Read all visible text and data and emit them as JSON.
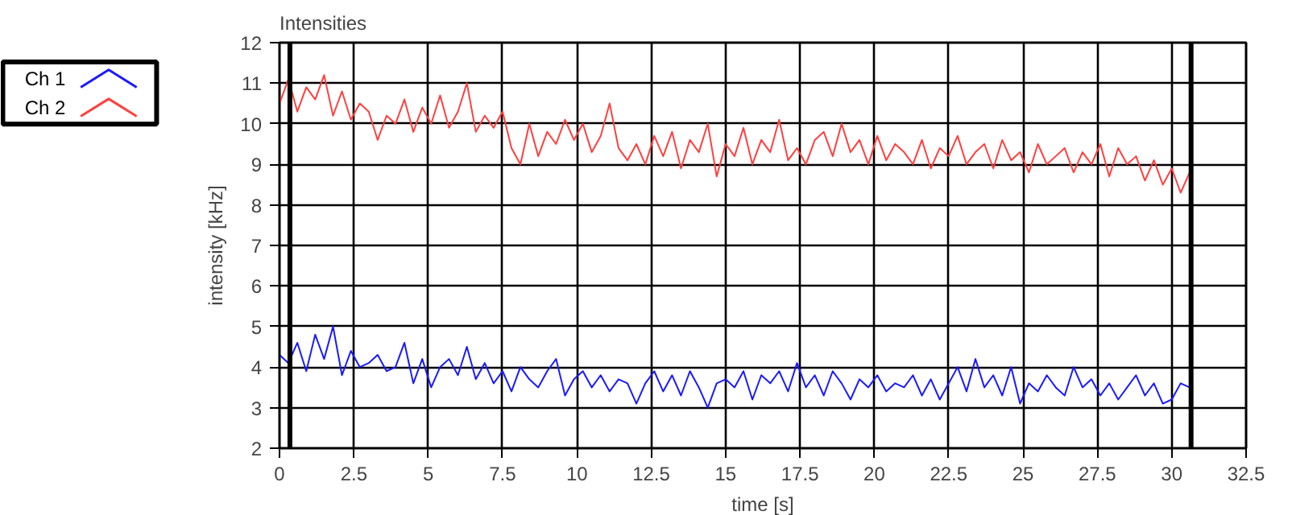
{
  "chart_data": {
    "type": "line",
    "title": "Intensities",
    "xlabel": "time [s]",
    "ylabel": "intensity [kHz]",
    "x": [
      0,
      0.3,
      0.6,
      0.9,
      1.2,
      1.5,
      1.8,
      2.1,
      2.4,
      2.7,
      3.0,
      3.3,
      3.6,
      3.9,
      4.2,
      4.5,
      4.8,
      5.1,
      5.4,
      5.7,
      6.0,
      6.3,
      6.6,
      6.9,
      7.2,
      7.5,
      7.8,
      8.1,
      8.4,
      8.7,
      9.0,
      9.3,
      9.6,
      9.9,
      10.2,
      10.5,
      10.8,
      11.1,
      11.4,
      11.7,
      12.0,
      12.3,
      12.6,
      12.9,
      13.2,
      13.5,
      13.8,
      14.1,
      14.4,
      14.7,
      15.0,
      15.3,
      15.6,
      15.9,
      16.2,
      16.5,
      16.8,
      17.1,
      17.4,
      17.7,
      18.0,
      18.3,
      18.6,
      18.9,
      19.2,
      19.5,
      19.8,
      20.1,
      20.4,
      20.7,
      21.0,
      21.3,
      21.6,
      21.9,
      22.2,
      22.5,
      22.8,
      23.1,
      23.4,
      23.7,
      24.0,
      24.3,
      24.6,
      24.9,
      25.2,
      25.5,
      25.8,
      26.1,
      26.4,
      26.7,
      27.0,
      27.3,
      27.6,
      27.9,
      28.2,
      28.5,
      28.8,
      29.1,
      29.4,
      29.7,
      30.0,
      30.3,
      30.6
    ],
    "series": [
      {
        "name": "Ch 1",
        "color": "#1a1aff",
        "values": [
          4.3,
          4.1,
          4.6,
          3.9,
          4.8,
          4.2,
          5.0,
          3.8,
          4.4,
          4.0,
          4.1,
          4.3,
          3.9,
          4.0,
          4.6,
          3.6,
          4.2,
          3.5,
          4.0,
          4.2,
          3.8,
          4.5,
          3.7,
          4.1,
          3.6,
          3.9,
          3.4,
          4.0,
          3.7,
          3.5,
          3.9,
          4.2,
          3.3,
          3.7,
          3.9,
          3.5,
          3.8,
          3.4,
          3.7,
          3.6,
          3.1,
          3.6,
          3.9,
          3.4,
          3.8,
          3.3,
          3.9,
          3.5,
          3.0,
          3.6,
          3.7,
          3.5,
          3.9,
          3.2,
          3.8,
          3.6,
          3.9,
          3.4,
          4.1,
          3.5,
          3.8,
          3.3,
          3.9,
          3.6,
          3.2,
          3.7,
          3.5,
          3.8,
          3.4,
          3.6,
          3.5,
          3.8,
          3.3,
          3.7,
          3.2,
          3.6,
          4.0,
          3.4,
          4.2,
          3.5,
          3.8,
          3.3,
          4.0,
          3.1,
          3.6,
          3.4,
          3.8,
          3.5,
          3.3,
          4.0,
          3.5,
          3.7,
          3.3,
          3.6,
          3.2,
          3.5,
          3.8,
          3.3,
          3.6,
          3.1,
          3.2,
          3.6,
          3.5
        ]
      },
      {
        "name": "Ch 2",
        "color": "#ff4040",
        "values": [
          10.5,
          11.1,
          10.3,
          10.9,
          10.6,
          11.2,
          10.2,
          10.8,
          10.1,
          10.5,
          10.3,
          9.6,
          10.2,
          10.0,
          10.6,
          9.8,
          10.4,
          10.0,
          10.7,
          9.9,
          10.3,
          11.0,
          9.8,
          10.2,
          9.9,
          10.3,
          9.4,
          9.0,
          10.0,
          9.2,
          9.8,
          9.5,
          10.1,
          9.6,
          10.0,
          9.3,
          9.7,
          10.5,
          9.4,
          9.1,
          9.5,
          9.0,
          9.7,
          9.2,
          9.8,
          8.9,
          9.6,
          9.3,
          10.0,
          8.7,
          9.5,
          9.2,
          9.9,
          9.0,
          9.6,
          9.3,
          10.1,
          9.1,
          9.4,
          9.0,
          9.6,
          9.8,
          9.2,
          10.0,
          9.3,
          9.6,
          9.0,
          9.7,
          9.1,
          9.5,
          9.3,
          9.0,
          9.6,
          8.9,
          9.4,
          9.2,
          9.7,
          9.0,
          9.3,
          9.5,
          8.9,
          9.6,
          9.1,
          9.3,
          8.8,
          9.5,
          9.0,
          9.2,
          9.4,
          8.8,
          9.3,
          9.0,
          9.5,
          8.7,
          9.4,
          9.0,
          9.2,
          8.6,
          9.1,
          8.5,
          8.9,
          8.3,
          8.8
        ]
      }
    ],
    "xlim": [
      0,
      32.5
    ],
    "xticks": [
      0,
      2.5,
      5,
      7.5,
      10,
      12.5,
      15,
      17.5,
      20,
      22.5,
      25,
      27.5,
      30,
      32.5
    ],
    "ylim": [
      2,
      12
    ],
    "yticks": [
      2,
      3,
      4,
      5,
      6,
      7,
      8,
      9,
      10,
      11,
      12
    ],
    "ref_lines": [
      {
        "axis": "x",
        "value": 0.35,
        "color": "#000000"
      },
      {
        "axis": "x",
        "value": 30.65,
        "color": "#000000"
      }
    ],
    "grid": true,
    "legend": "top left",
    "marker": "none",
    "line_style": "solid"
  }
}
